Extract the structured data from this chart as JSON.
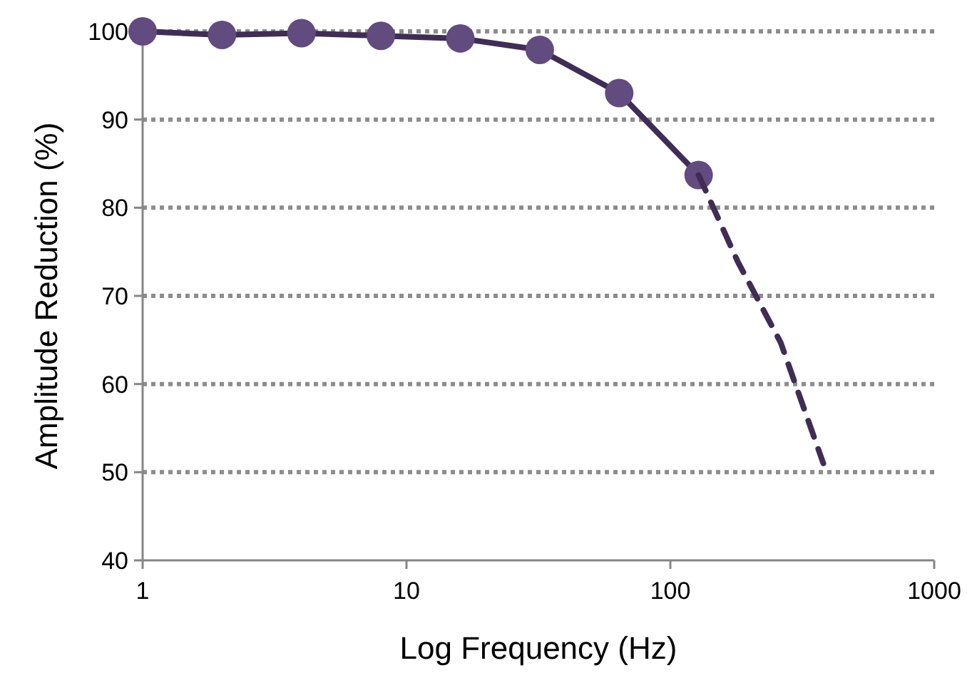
{
  "chart_data": {
    "type": "line",
    "xlabel": "Log Frequency (Hz)",
    "ylabel": "Amplitude Reduction (%)",
    "log": "x",
    "xlim": [
      1,
      1000
    ],
    "xticks": [
      1,
      10,
      100,
      1000
    ],
    "ylim": [
      40,
      100
    ],
    "yticks": [
      40,
      50,
      60,
      70,
      80,
      90,
      100
    ],
    "grid": "y",
    "series": [
      {
        "color": "#3f2d55",
        "marker": "circle",
        "line_style": "solid",
        "x": [
          1,
          2,
          4,
          8,
          16,
          32,
          64,
          128
        ],
        "values": [
          100,
          99.6,
          99.8,
          99.5,
          99.2,
          97.9,
          93,
          83.7
        ]
      },
      {
        "color": "#3f2d55",
        "marker": "none",
        "line_style": "dashed",
        "x": [
          128,
          180,
          262,
          380
        ],
        "values": [
          83.7,
          73.9,
          64.7,
          51
        ]
      }
    ]
  }
}
